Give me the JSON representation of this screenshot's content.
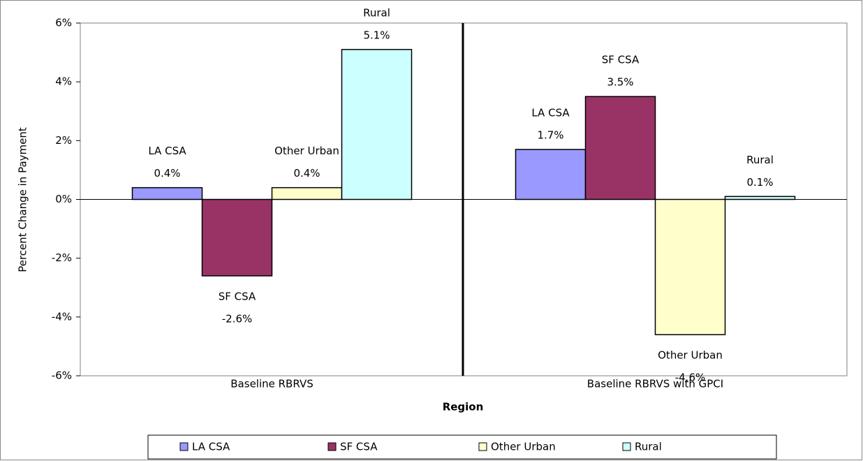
{
  "chart_data": {
    "type": "bar",
    "categories": [
      "Baseline RBRVS",
      "Baseline RBRVS with GPCI"
    ],
    "series": [
      {
        "name": "LA CSA",
        "color": "#9999ff",
        "values": [
          0.4,
          1.7
        ],
        "value_labels": [
          "0.4%",
          "1.7%"
        ]
      },
      {
        "name": "SF CSA",
        "color": "#993366",
        "values": [
          -2.6,
          3.5
        ],
        "value_labels": [
          "-2.6%",
          "3.5%"
        ]
      },
      {
        "name": "Other Urban",
        "color": "#ffffcc",
        "values": [
          0.4,
          -4.6
        ],
        "value_labels": [
          "0.4%",
          "-4.6%"
        ]
      },
      {
        "name": "Rural",
        "color": "#ccffff",
        "values": [
          5.1,
          0.1
        ],
        "value_labels": [
          "5.1%",
          "0.1%"
        ]
      }
    ],
    "xlabel": "Region",
    "ylabel": "Percent Change in Payment",
    "ylim": [
      -6,
      6
    ],
    "yticks": [
      {
        "value": -6,
        "label": "-6%"
      },
      {
        "value": -4,
        "label": "-4%"
      },
      {
        "value": -2,
        "label": "-2%"
      },
      {
        "value": 0,
        "label": "0%"
      },
      {
        "value": 2,
        "label": "2%"
      },
      {
        "value": 4,
        "label": "4%"
      },
      {
        "value": 6,
        "label": "6%"
      }
    ],
    "grid": false,
    "legend": "bottom"
  }
}
